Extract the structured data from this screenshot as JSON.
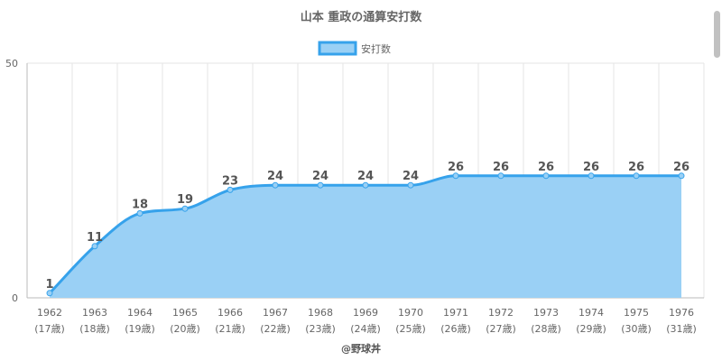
{
  "chart_data": {
    "type": "area",
    "title": "山本 重政の通算安打数",
    "legend": {
      "label": "安打数",
      "position": "top"
    },
    "categories": [
      "1962",
      "1963",
      "1964",
      "1965",
      "1966",
      "1967",
      "1968",
      "1969",
      "1970",
      "1971",
      "1972",
      "1973",
      "1974",
      "1975",
      "1976"
    ],
    "sub_labels": [
      "(17歳)",
      "(18歳)",
      "(19歳)",
      "(20歳)",
      "(21歳)",
      "(22歳)",
      "(23歳)",
      "(24歳)",
      "(25歳)",
      "(26歳)",
      "(27歳)",
      "(28歳)",
      "(29歳)",
      "(30歳)",
      "(31歳)"
    ],
    "series": [
      {
        "name": "安打数",
        "values": [
          1,
          11,
          18,
          19,
          23,
          24,
          24,
          24,
          24,
          26,
          26,
          26,
          26,
          26,
          26
        ]
      }
    ],
    "ylim": [
      0,
      50
    ],
    "yticks": [
      0,
      50
    ],
    "grid": true,
    "colors": {
      "line": "#36a2eb",
      "fill": "#9ad0f5",
      "grid": "#e6e6e6",
      "axis": "#bbbbbb"
    }
  },
  "footer": "@野球丼"
}
